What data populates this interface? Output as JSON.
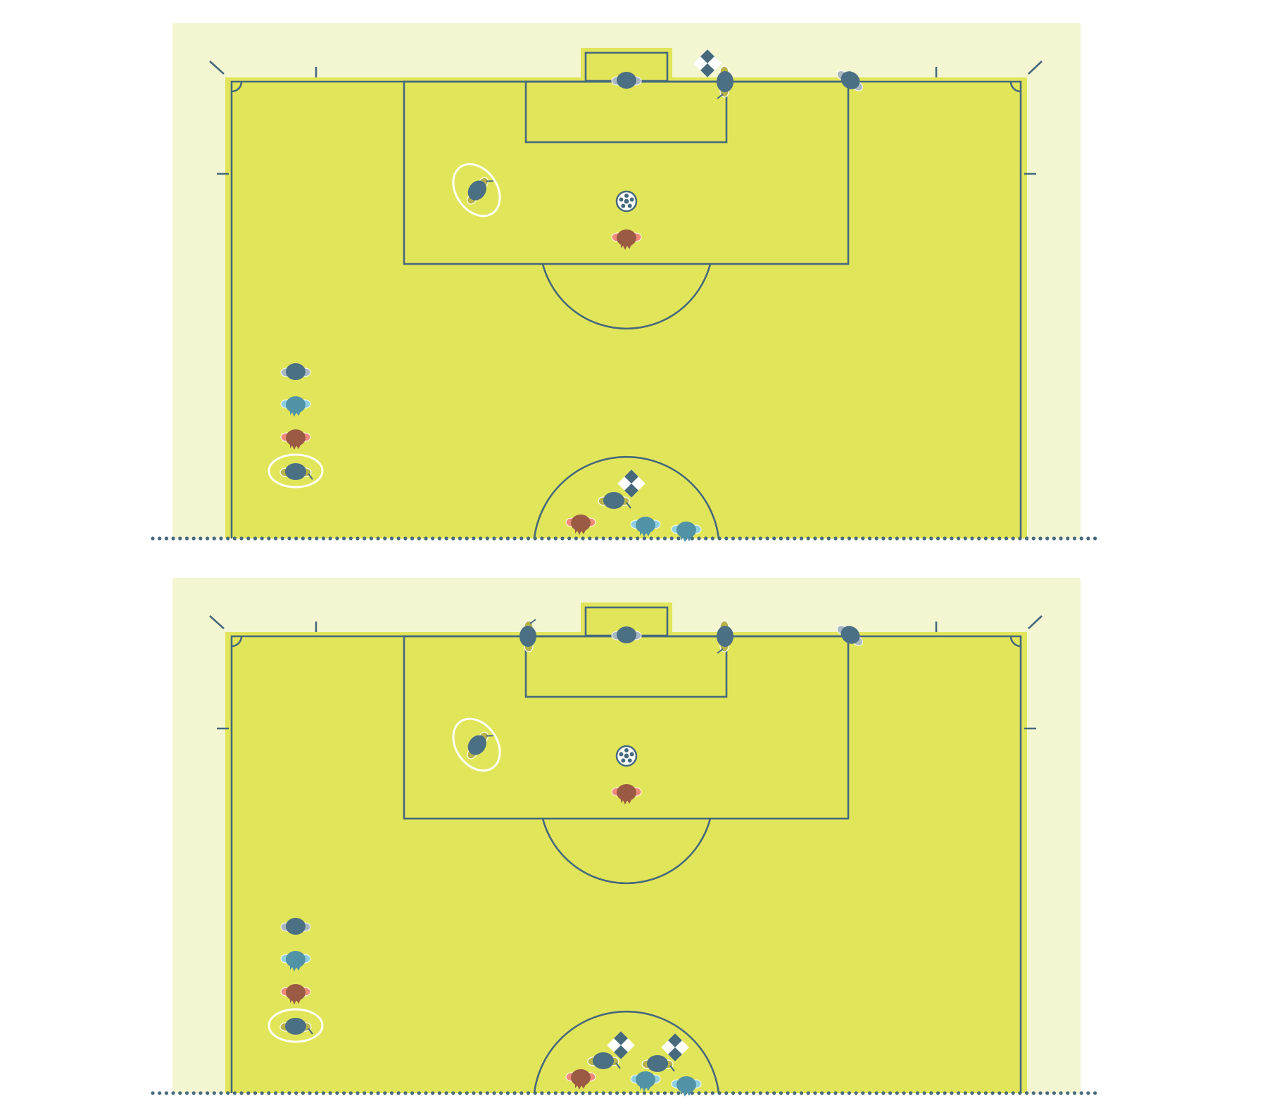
{
  "colors": {
    "background": "#ffffff",
    "surround": "#f4f6d2",
    "pitch": "#e1e55a",
    "lines": "#46697c",
    "highlight_ring": "#ffffff",
    "team_dark": "#4b6f83",
    "team_dark_arms": "#a9b8c1",
    "team_teal": "#5193a6",
    "team_teal_arms": "#8fcfe0",
    "player_brown": "#9b5a44",
    "player_brown_arms": "#f08a79",
    "official_shirt": "#4b6f83",
    "official_arms": "#b7b34a",
    "ball": "#ffffff"
  },
  "diagrams": [
    {
      "name": "scenario-one",
      "officials": [
        "goalkeeper-on-line",
        "assistant-referee-on-goal-line-with-flag",
        "fourth-official-near-corner",
        "referee-highlighted-in-penalty-area",
        "substitute-officials-column",
        "officials-at-centre-circle-with-flag"
      ],
      "elements": [
        "ball",
        "penalty-taker",
        "players-at-centre-circle"
      ]
    },
    {
      "name": "scenario-two",
      "officials": [
        "goalkeeper-on-line",
        "additional-assistant-left-post-with-flag",
        "additional-assistant-right-post-with-flag",
        "fourth-official-near-corner",
        "referee-highlighted-in-penalty-area",
        "substitute-officials-column",
        "two-officials-at-centre-circle-with-flags"
      ],
      "elements": [
        "ball",
        "penalty-taker",
        "players-at-centre-circle"
      ]
    }
  ],
  "icons": {
    "ball": "soccer-ball-icon",
    "flag": "checkered-flag-icon",
    "player": "player-top-view-icon"
  }
}
